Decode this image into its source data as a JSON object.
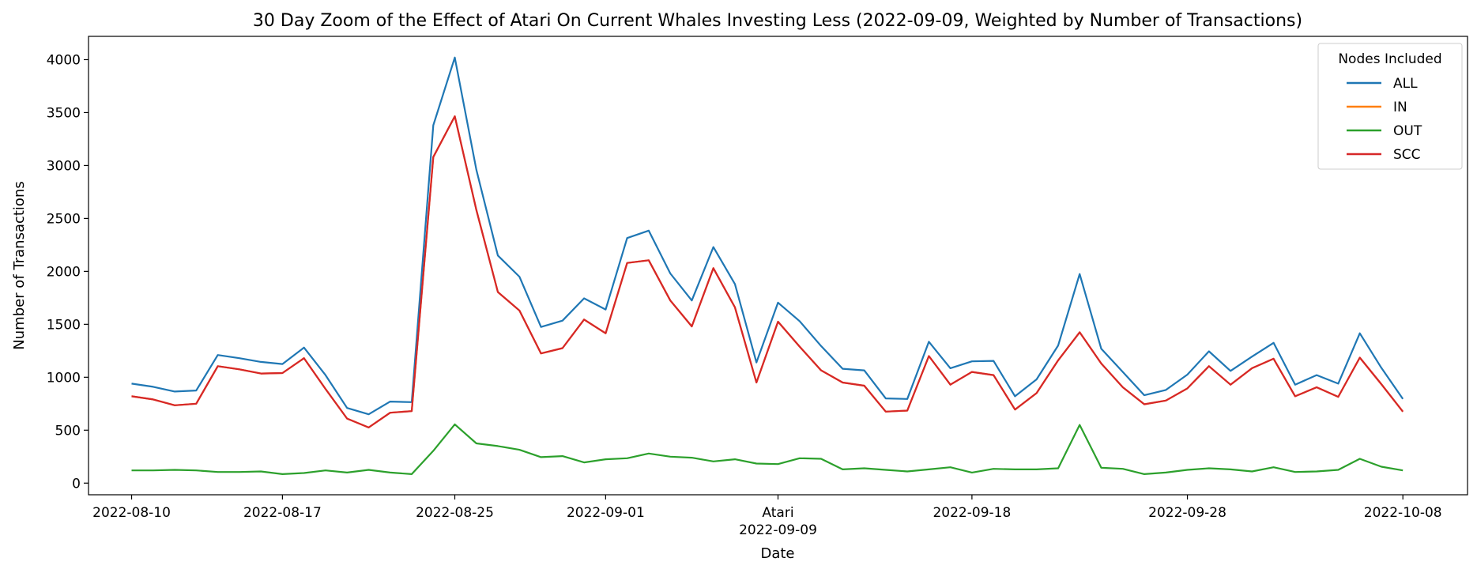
{
  "chart_data": {
    "type": "line",
    "title": "30 Day Zoom of the Effect of Atari On Current Whales Investing Less (2022-09-09, Weighted by Number of Transactions)",
    "xlabel": "Date",
    "ylabel": "Number of Transactions",
    "xlim": [
      "2022-08-08",
      "2022-10-11"
    ],
    "ylim": [
      -110,
      4220
    ],
    "yticks": [
      0,
      500,
      1000,
      1500,
      2000,
      2500,
      3000,
      3500,
      4000
    ],
    "xticks": [
      {
        "date": "2022-08-10",
        "label": "2022-08-10"
      },
      {
        "date": "2022-08-17",
        "label": "2022-08-17"
      },
      {
        "date": "2022-08-25",
        "label": "2022-08-25"
      },
      {
        "date": "2022-09-01",
        "label": "2022-09-01"
      },
      {
        "date": "2022-09-09",
        "label": "2022-09-09",
        "annotation": "Atari"
      },
      {
        "date": "2022-09-18",
        "label": "2022-09-18"
      },
      {
        "date": "2022-09-28",
        "label": "2022-09-28"
      },
      {
        "date": "2022-10-08",
        "label": "2022-10-08"
      }
    ],
    "grid": false,
    "legend": {
      "title": "Nodes Included",
      "placement": "top-right"
    },
    "x": [
      "2022-08-10",
      "2022-08-11",
      "2022-08-12",
      "2022-08-13",
      "2022-08-14",
      "2022-08-15",
      "2022-08-16",
      "2022-08-17",
      "2022-08-18",
      "2022-08-19",
      "2022-08-20",
      "2022-08-21",
      "2022-08-22",
      "2022-08-23",
      "2022-08-24",
      "2022-08-25",
      "2022-08-26",
      "2022-08-27",
      "2022-08-28",
      "2022-08-29",
      "2022-08-30",
      "2022-08-31",
      "2022-09-01",
      "2022-09-02",
      "2022-09-03",
      "2022-09-04",
      "2022-09-05",
      "2022-09-06",
      "2022-09-07",
      "2022-09-08",
      "2022-09-09",
      "2022-09-10",
      "2022-09-11",
      "2022-09-12",
      "2022-09-13",
      "2022-09-14",
      "2022-09-15",
      "2022-09-16",
      "2022-09-17",
      "2022-09-18",
      "2022-09-19",
      "2022-09-20",
      "2022-09-21",
      "2022-09-22",
      "2022-09-23",
      "2022-09-24",
      "2022-09-25",
      "2022-09-26",
      "2022-09-27",
      "2022-09-28",
      "2022-09-29",
      "2022-09-30",
      "2022-10-01",
      "2022-10-02",
      "2022-10-03",
      "2022-10-04",
      "2022-10-05",
      "2022-10-06",
      "2022-10-07",
      "2022-10-08"
    ],
    "series": [
      {
        "name": "ALL",
        "color": "#1f77b4",
        "values": [
          940,
          910,
          865,
          875,
          1210,
          1180,
          1145,
          1125,
          1280,
          1020,
          710,
          650,
          770,
          765,
          3380,
          4020,
          2960,
          2150,
          1950,
          1475,
          1535,
          1745,
          1640,
          2315,
          2385,
          1980,
          1725,
          2230,
          1880,
          1140,
          1705,
          1530,
          1295,
          1080,
          1065,
          800,
          795,
          1335,
          1085,
          1150,
          1155,
          820,
          980,
          1300,
          1975,
          1270,
          1050,
          830,
          880,
          1025,
          1245,
          1060,
          1195,
          1325,
          930,
          1020,
          940,
          1415,
          1090,
          795
        ]
      },
      {
        "name": "IN",
        "color": "#ff7f0e",
        "values": [
          820,
          790,
          735,
          750,
          1105,
          1075,
          1035,
          1040,
          1180,
          890,
          610,
          525,
          665,
          680,
          3080,
          3465,
          2580,
          1805,
          1630,
          1225,
          1275,
          1545,
          1415,
          2080,
          2105,
          1725,
          1480,
          2030,
          1660,
          950,
          1525,
          1290,
          1065,
          950,
          920,
          675,
          685,
          1200,
          930,
          1050,
          1020,
          695,
          850,
          1160,
          1425,
          1130,
          905,
          745,
          780,
          895,
          1105,
          930,
          1085,
          1175,
          820,
          905,
          815,
          1185,
          935,
          675
        ]
      },
      {
        "name": "OUT",
        "color": "#2ca02c",
        "values": [
          120,
          120,
          125,
          120,
          105,
          105,
          110,
          85,
          95,
          120,
          100,
          125,
          100,
          85,
          305,
          555,
          375,
          350,
          315,
          245,
          255,
          195,
          225,
          235,
          280,
          250,
          240,
          205,
          225,
          185,
          180,
          235,
          230,
          130,
          140,
          125,
          110,
          130,
          150,
          100,
          135,
          130,
          130,
          140,
          550,
          145,
          135,
          85,
          100,
          125,
          140,
          130,
          110,
          150,
          105,
          110,
          125,
          230,
          155,
          120
        ]
      },
      {
        "name": "SCC",
        "color": "#d62728",
        "values": [
          820,
          790,
          735,
          750,
          1105,
          1075,
          1035,
          1040,
          1180,
          890,
          610,
          525,
          665,
          680,
          3080,
          3465,
          2580,
          1805,
          1630,
          1225,
          1275,
          1545,
          1415,
          2080,
          2105,
          1725,
          1480,
          2030,
          1660,
          950,
          1525,
          1290,
          1065,
          950,
          920,
          675,
          685,
          1200,
          930,
          1050,
          1020,
          695,
          850,
          1160,
          1425,
          1130,
          905,
          745,
          780,
          895,
          1105,
          930,
          1085,
          1175,
          820,
          905,
          815,
          1185,
          935,
          675
        ]
      }
    ]
  }
}
